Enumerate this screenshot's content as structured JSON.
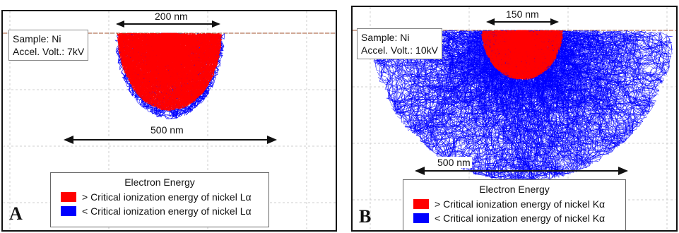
{
  "panels": [
    {
      "letter": "A",
      "sample": "Sample: Ni",
      "voltage": "Accel. Volt.: 7kV",
      "scale_top": "200 nm",
      "scale_bottom": "500 nm",
      "legend": {
        "title": "Electron Energy",
        "above": "> Critical ionization energy of nickel Lα",
        "below": "< Critical ionization energy of nickel Lα"
      }
    },
    {
      "letter": "B",
      "sample": "Sample: Ni",
      "voltage": "Accel. Volt.: 10kV",
      "scale_top": "150 nm",
      "scale_bottom": "500 nm",
      "legend": {
        "title": "Electron Energy",
        "above": "> Critical ionization energy of nickel Kα",
        "below": "< Critical ionization energy of nickel Kα"
      }
    }
  ],
  "colors": {
    "above": "#ff0000",
    "below": "#0000ff",
    "grid": "#cfcfcf",
    "surface": "#a0522d",
    "frame": "#111111"
  }
}
